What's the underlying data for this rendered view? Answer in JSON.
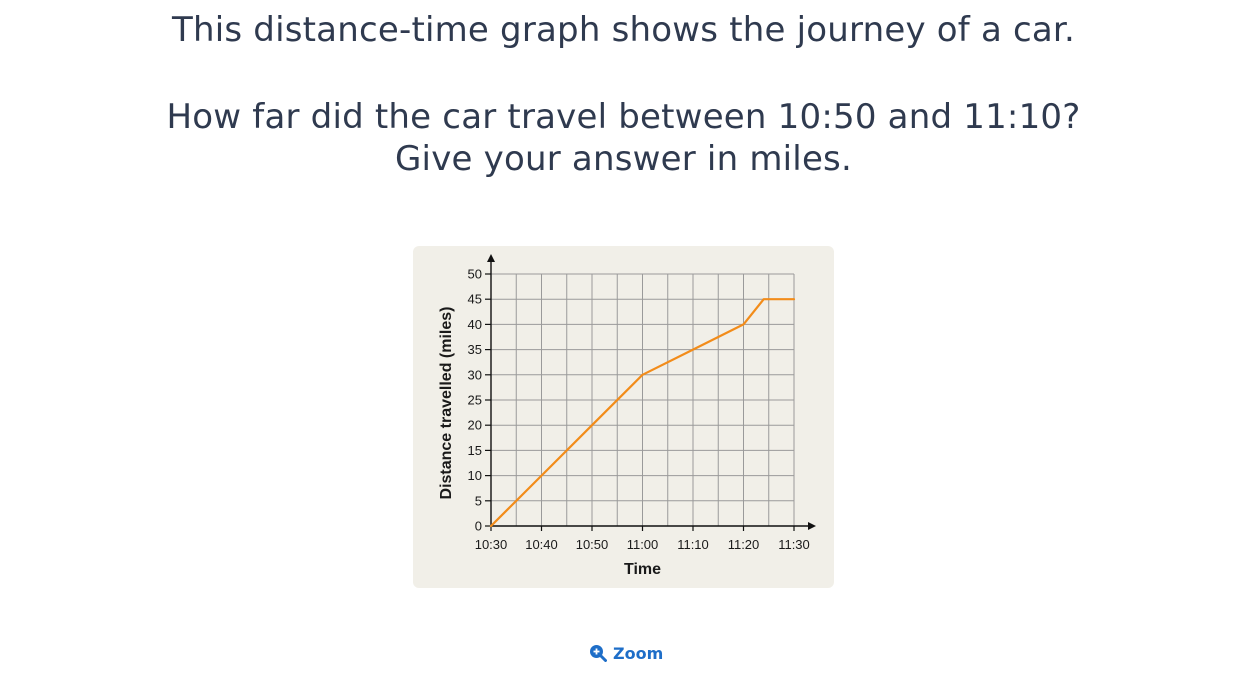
{
  "question": {
    "line1": "This distance-time graph shows the journey of a car.",
    "line2": "How far did the car travel between 10:50 and 11:10?",
    "line3": "Give your answer in miles."
  },
  "zoom_label": "Zoom",
  "colors": {
    "line": "#f28c1a",
    "grid": "#9a9a9a",
    "background": "#f1efe8",
    "link": "#1e6ec8"
  },
  "chart_data": {
    "type": "line",
    "xlabel": "Time",
    "ylabel": "Distance travelled (miles)",
    "x_ticks": [
      "10:30",
      "10:40",
      "10:50",
      "11:00",
      "11:10",
      "11:20",
      "11:30"
    ],
    "y_ticks": [
      0,
      5,
      10,
      15,
      20,
      25,
      30,
      35,
      40,
      45,
      50
    ],
    "xlim": [
      "10:30",
      "11:30"
    ],
    "ylim": [
      0,
      50
    ],
    "grid": true,
    "series": [
      {
        "x": [
          "10:30",
          "10:40",
          "10:50",
          "11:00",
          "11:10",
          "11:20",
          "11:24",
          "11:30"
        ],
        "y": [
          0,
          10,
          20,
          30,
          35,
          40,
          45,
          45
        ]
      }
    ]
  }
}
